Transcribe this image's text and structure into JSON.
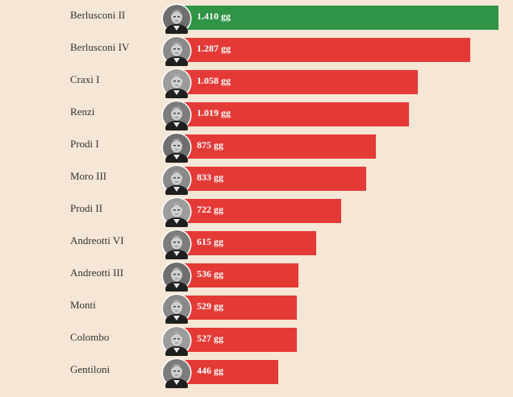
{
  "colors": {
    "background": "#f5e6d6",
    "bar": "#e43a36",
    "top_bar": "#2f9446",
    "value_text": "#ffffff",
    "label_text": "#333333"
  },
  "chart_data": {
    "type": "bar",
    "orientation": "horizontal",
    "title": "",
    "xlabel": "",
    "ylabel": "",
    "unit": "gg",
    "xlim": [
      0,
      1410
    ],
    "grid": false,
    "legend": "none",
    "categories": [
      "Berlusconi II",
      "Berlusconi IV",
      "Craxi I",
      "Renzi",
      "Prodi I",
      "Moro III",
      "Prodi II",
      "Andreotti VI",
      "Andreotti III",
      "Monti",
      "Colombo",
      "Gentiloni"
    ],
    "values": [
      1410,
      1287,
      1058,
      1019,
      875,
      833,
      722,
      615,
      536,
      529,
      527,
      446
    ],
    "value_labels": [
      "1.410 gg",
      "1.287 gg",
      "1.058 gg",
      "1.019 gg",
      "875 gg",
      "833 gg",
      "722 gg",
      "615 gg",
      "536 gg",
      "529 gg",
      "527 gg",
      "446 gg"
    ],
    "icons": [
      "portrait-berlusconi-icon",
      "portrait-berlusconi-icon",
      "portrait-craxi-icon",
      "portrait-renzi-icon",
      "portrait-prodi-icon",
      "portrait-moro-icon",
      "portrait-prodi-icon",
      "portrait-andreotti-icon",
      "portrait-andreotti-icon",
      "portrait-monti-icon",
      "portrait-colombo-icon",
      "portrait-gentiloni-icon"
    ]
  }
}
